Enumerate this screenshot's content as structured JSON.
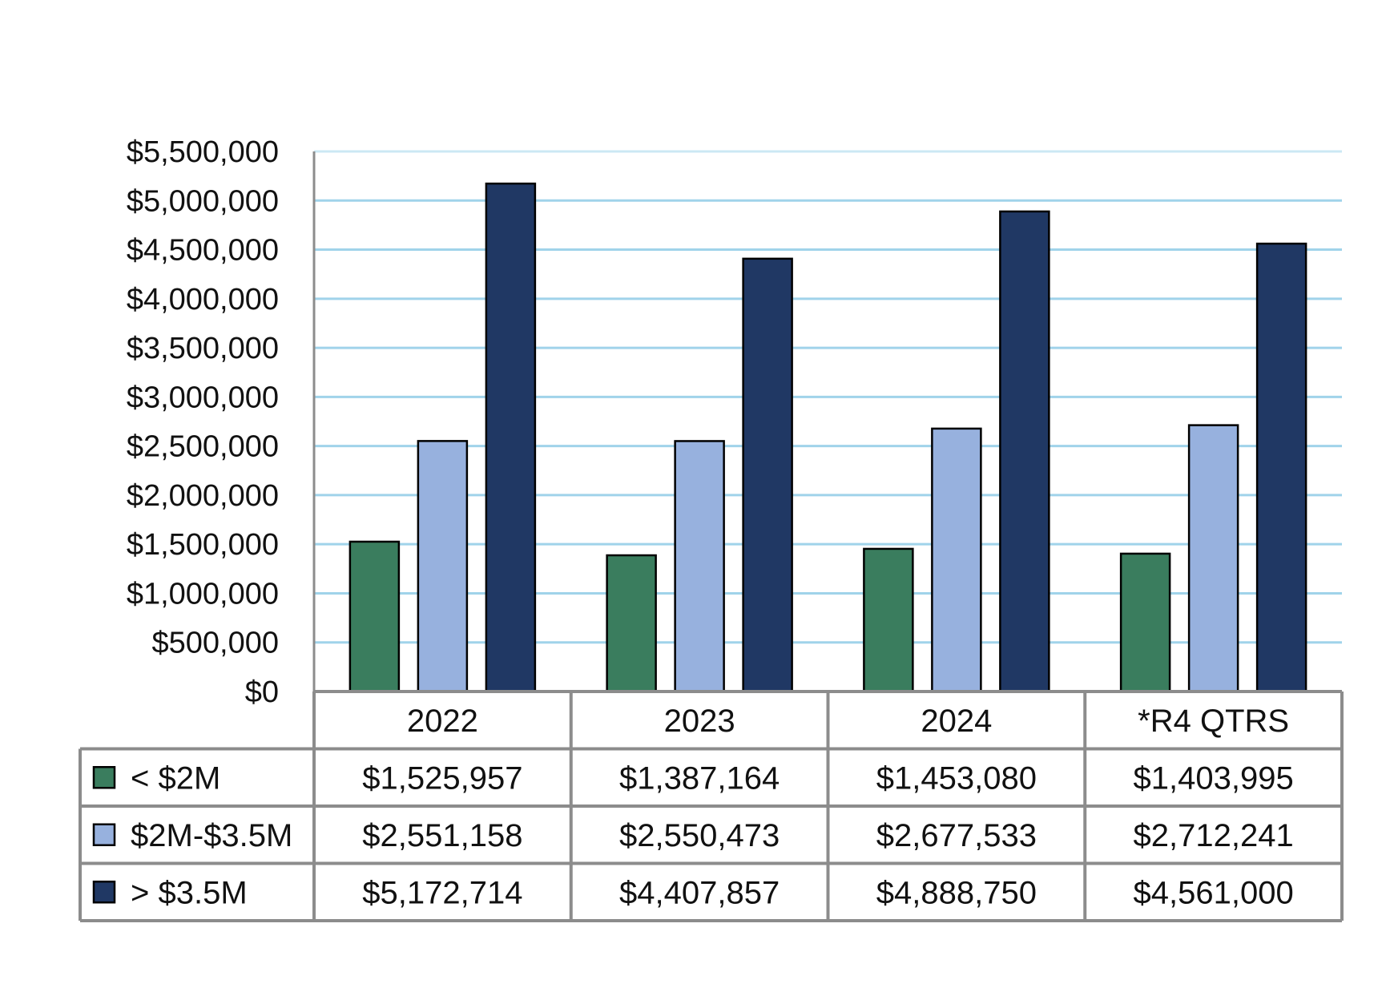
{
  "chart_data": {
    "type": "bar",
    "title": "",
    "xlabel": "",
    "ylabel": "",
    "categories": [
      "2022",
      "2023",
      "2024",
      "*R4 QTRS"
    ],
    "ylim": [
      0,
      5500000
    ],
    "y_ticks": [
      0,
      500000,
      1000000,
      1500000,
      2000000,
      2500000,
      3000000,
      3500000,
      4000000,
      4500000,
      5000000,
      5500000
    ],
    "y_tick_labels": [
      "$0",
      "$500,000",
      "$1,000,000",
      "$1,500,000",
      "$2,000,000",
      "$2,500,000",
      "$3,000,000",
      "$3,500,000",
      "$4,000,000",
      "$4,500,000",
      "$5,000,000",
      "$5,500,000"
    ],
    "grid": true,
    "legend": "data-table",
    "series": [
      {
        "name": "< $2M",
        "color": "#3a7d5e",
        "values": [
          1525957,
          1387164,
          1453080,
          1403995
        ],
        "value_labels": [
          "$1,525,957",
          "$1,387,164",
          "$1,453,080",
          "$1,403,995"
        ]
      },
      {
        "name": "$2M-$3.5M",
        "color": "#97b1de",
        "values": [
          2551158,
          2550473,
          2677533,
          2712241
        ],
        "value_labels": [
          "$2,551,158",
          "$2,550,473",
          "$2,677,533",
          "$2,712,241"
        ]
      },
      {
        "name": "> $3.5M",
        "color": "#203864",
        "values": [
          5172714,
          4407857,
          4888750,
          4561000
        ],
        "value_labels": [
          "$5,172,714",
          "$4,407,857",
          "$4,888,750",
          "$4,561,000"
        ]
      }
    ]
  },
  "colors": {
    "gridline": "#8fcbe6",
    "table_border": "#8c8c8c",
    "bar_outline": "#000000",
    "axis": "#8c8c8c"
  }
}
